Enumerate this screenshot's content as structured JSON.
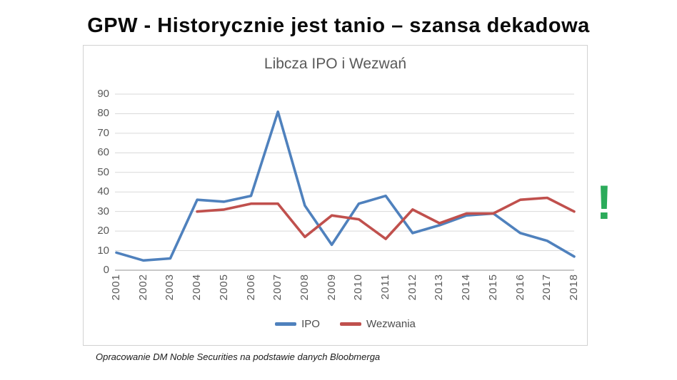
{
  "slide": {
    "title": "GPW - Historycznie jest tanio – szansa dekadowa",
    "annotation": "!",
    "annotation_color": "#2bab5a",
    "caption": "Opracowanie DM Noble Securities na podstawie danych Bloobmerga"
  },
  "chart_data": {
    "type": "line",
    "title": "Libcza IPO i Wezwań",
    "categories": [
      "2001",
      "2002",
      "2003",
      "2004",
      "2005",
      "2006",
      "2007",
      "2008",
      "2009",
      "2010",
      "2011",
      "2012",
      "2013",
      "2014",
      "2015",
      "2016",
      "2017",
      "2018"
    ],
    "series": [
      {
        "name": "IPO",
        "color": "#4F81BD",
        "values": [
          9,
          5,
          6,
          36,
          35,
          38,
          81,
          33,
          13,
          34,
          38,
          19,
          23,
          28,
          29,
          19,
          15,
          7
        ]
      },
      {
        "name": "Wezwania",
        "color": "#C0504D",
        "values": [
          null,
          null,
          null,
          30,
          31,
          34,
          34,
          17,
          28,
          26,
          16,
          31,
          24,
          29,
          29,
          36,
          37,
          30
        ]
      }
    ],
    "xlabel": "",
    "ylabel": "",
    "ylim": [
      0,
      90
    ],
    "yticks": [
      0,
      10,
      20,
      30,
      40,
      50,
      60,
      70,
      80,
      90
    ],
    "grid": true,
    "gridline_color": "#d9d9d9",
    "axis_line_color": "#b7b7b7",
    "tick_label_color": "#595959",
    "legend_position": "bottom"
  }
}
